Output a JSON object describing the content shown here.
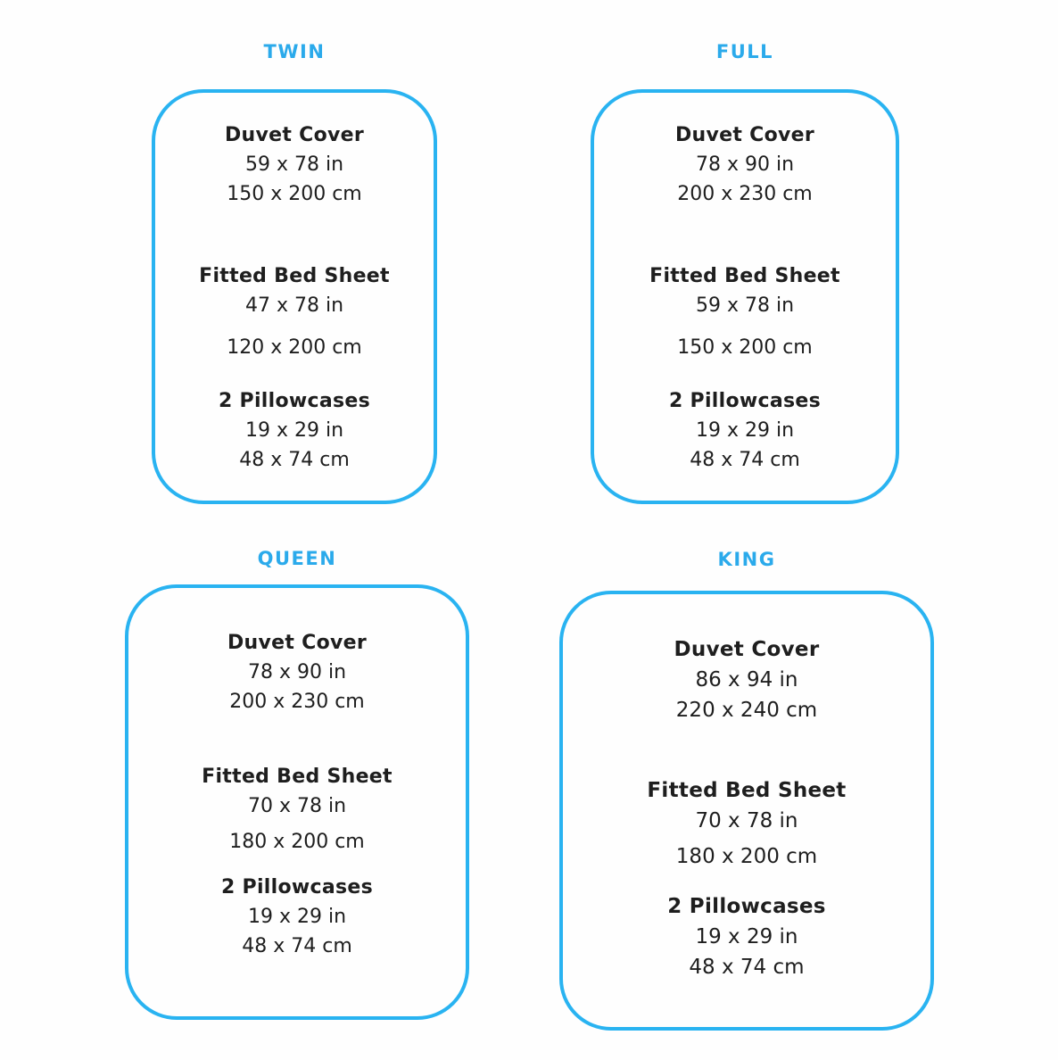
{
  "colors": {
    "accent": "#2BAAEB",
    "card_border": "#29B3F1",
    "text": "#1E1E1E",
    "background": "#FEFEFE"
  },
  "cards": [
    {
      "size": "TWIN",
      "items": [
        {
          "label": "Duvet Cover",
          "inches": "59 x 78 in",
          "cm": "150 x 200 cm"
        },
        {
          "label": "Fitted Bed Sheet",
          "inches": "47 x 78 in",
          "cm": "120 x 200 cm"
        },
        {
          "label": "2 Pillowcases",
          "inches": "19 x 29 in",
          "cm": "48 x 74 cm"
        }
      ]
    },
    {
      "size": "FULL",
      "items": [
        {
          "label": "Duvet Cover",
          "inches": "78 x 90 in",
          "cm": "200 x 230 cm"
        },
        {
          "label": "Fitted Bed Sheet",
          "inches": "59 x 78 in",
          "cm": "150 x 200 cm"
        },
        {
          "label": "2 Pillowcases",
          "inches": "19 x 29 in",
          "cm": "48 x 74 cm"
        }
      ]
    },
    {
      "size": "QUEEN",
      "items": [
        {
          "label": "Duvet Cover",
          "inches": "78 x 90 in",
          "cm": "200 x 230 cm"
        },
        {
          "label": "Fitted Bed Sheet",
          "inches": "70 x 78 in",
          "cm": "180 x 200 cm"
        },
        {
          "label": "2 Pillowcases",
          "inches": "19 x 29 in",
          "cm": "48 x 74 cm"
        }
      ]
    },
    {
      "size": "KING",
      "items": [
        {
          "label": "Duvet Cover",
          "inches": "86 x 94 in",
          "cm": "220 x 240 cm"
        },
        {
          "label": "Fitted Bed Sheet",
          "inches": "70 x 78 in",
          "cm": "180 x 200 cm"
        },
        {
          "label": "2 Pillowcases",
          "inches": "19 x 29 in",
          "cm": "48 x 74 cm"
        }
      ]
    }
  ]
}
